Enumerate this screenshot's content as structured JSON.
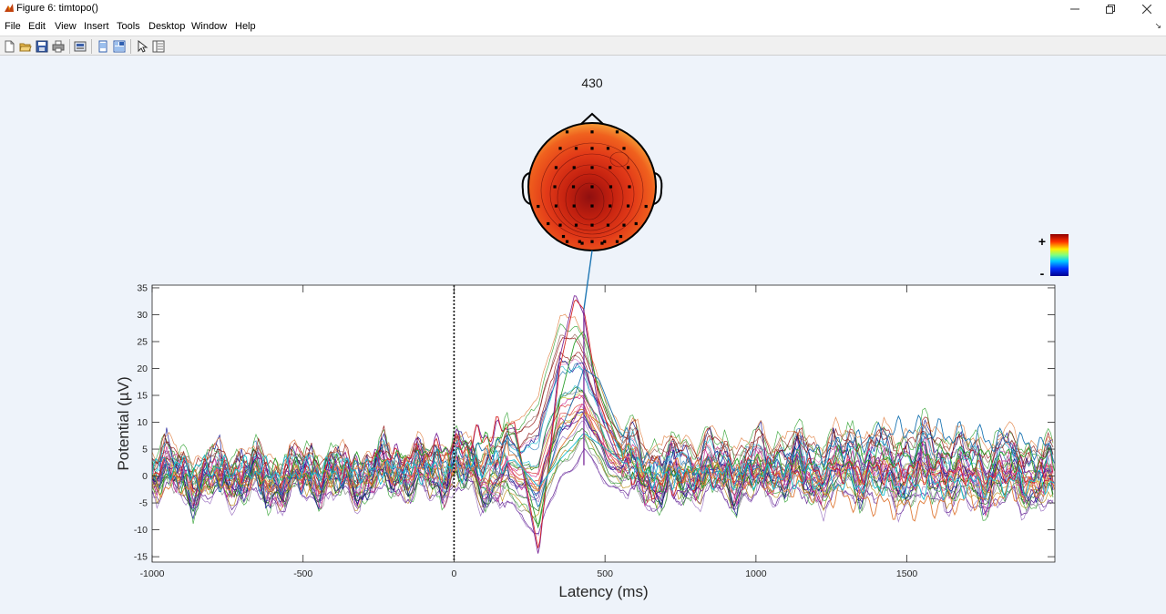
{
  "window": {
    "title": "Figure 6: timtopo()",
    "controls": [
      "minimize",
      "restore",
      "close"
    ]
  },
  "menu": {
    "items": [
      "File",
      "Edit",
      "View",
      "Insert",
      "Tools",
      "Desktop",
      "Window",
      "Help"
    ]
  },
  "toolbar": {
    "icons": [
      "new-figure-icon",
      "open-file-icon",
      "save-icon",
      "print-icon",
      "print-preview-icon",
      "hide-plot-tools-icon",
      "show-plot-tools-icon",
      "edit-plot-pointer-icon",
      "open-property-inspector-icon"
    ]
  },
  "colors": {
    "figure_background": "#eef3fa",
    "axes_background": "#ffffff",
    "connector_line": "#1f77b4",
    "latency_marker": "#7b2a9a",
    "zero_line": "#000000"
  },
  "topoplot": {
    "title": "430",
    "latency_ms": 430,
    "colorbar": {
      "plus_label": "+",
      "minus_label": "-",
      "colormap": "jet"
    }
  },
  "chart_data": {
    "type": "line",
    "title": "",
    "xlabel": "Latency (ms)",
    "ylabel": "Potential (µV)",
    "xlim": [
      -1000,
      1990
    ],
    "ylim": [
      -16,
      35.5
    ],
    "xticks": [
      -1000,
      -500,
      0,
      500,
      1000,
      1500
    ],
    "yticks": [
      -15,
      -10,
      -5,
      0,
      5,
      10,
      15,
      20,
      25,
      30,
      35
    ],
    "grid": false,
    "legend": "none",
    "zero_line_x": 0,
    "marked_latency_x": 430,
    "channel_count": 32,
    "summary_envelope": {
      "x": [
        -1000,
        -800,
        -500,
        -200,
        0,
        80,
        200,
        280,
        350,
        400,
        430,
        480,
        550,
        650,
        1000,
        1500,
        1990
      ],
      "max": [
        6,
        5,
        5,
        5,
        8,
        5,
        12,
        18,
        33,
        34,
        28,
        20,
        10,
        8,
        8,
        10,
        7
      ],
      "min": [
        -4,
        -5,
        -5,
        -4,
        -4,
        -5,
        -8,
        -15,
        -5,
        -2,
        2,
        -2,
        -5,
        -6,
        -5,
        -6,
        -7
      ]
    },
    "series": [
      {
        "values": [
          [
            -1000,
            0.5
          ],
          [
            -500,
            -0.5
          ],
          [
            0,
            6
          ],
          [
            200,
            9
          ],
          [
            280,
            -15
          ],
          [
            350,
            22
          ],
          [
            400,
            34
          ],
          [
            430,
            30
          ],
          [
            480,
            12
          ],
          [
            550,
            2
          ],
          [
            650,
            -3
          ],
          [
            1000,
            0
          ],
          [
            1500,
            2
          ],
          [
            1990,
            1
          ]
        ],
        "color": "#7b2a9a"
      },
      {
        "values": [
          [
            -1000,
            1
          ],
          [
            -500,
            0
          ],
          [
            0,
            5
          ],
          [
            200,
            10
          ],
          [
            280,
            -14
          ],
          [
            350,
            20
          ],
          [
            400,
            33
          ],
          [
            430,
            31
          ],
          [
            480,
            14
          ],
          [
            550,
            3
          ],
          [
            650,
            -2
          ],
          [
            1000,
            1
          ],
          [
            1500,
            1
          ],
          [
            1990,
            0
          ]
        ],
        "color": "#d62728"
      },
      {
        "values": [
          [
            -1000,
            -1
          ],
          [
            -500,
            1
          ],
          [
            0,
            4
          ],
          [
            200,
            8
          ],
          [
            280,
            -10
          ],
          [
            350,
            14
          ],
          [
            400,
            25
          ],
          [
            430,
            27
          ],
          [
            480,
            16
          ],
          [
            550,
            5
          ],
          [
            650,
            -1
          ],
          [
            1000,
            2
          ],
          [
            1500,
            4
          ],
          [
            1990,
            3
          ]
        ],
        "color": "#2ca02c"
      },
      {
        "values": [
          [
            -1000,
            0
          ],
          [
            -500,
            -1
          ],
          [
            0,
            3
          ],
          [
            200,
            6
          ],
          [
            280,
            -6
          ],
          [
            350,
            8
          ],
          [
            400,
            15
          ],
          [
            430,
            20
          ],
          [
            480,
            18
          ],
          [
            550,
            8
          ],
          [
            650,
            1
          ],
          [
            1000,
            1
          ],
          [
            1500,
            9
          ],
          [
            1990,
            5
          ]
        ],
        "color": "#1f77b4"
      },
      {
        "values": [
          [
            -1000,
            -2
          ],
          [
            -500,
            0
          ],
          [
            0,
            2
          ],
          [
            200,
            4
          ],
          [
            280,
            -3
          ],
          [
            350,
            5
          ],
          [
            400,
            9
          ],
          [
            430,
            12
          ],
          [
            480,
            10
          ],
          [
            550,
            6
          ],
          [
            650,
            2
          ],
          [
            1000,
            -1
          ],
          [
            1500,
            -6
          ],
          [
            1990,
            -2
          ]
        ],
        "color": "#e07b39"
      },
      {
        "values": [
          [
            -1000,
            2
          ],
          [
            -500,
            1
          ],
          [
            0,
            1
          ],
          [
            200,
            3
          ],
          [
            280,
            -2
          ],
          [
            350,
            3
          ],
          [
            400,
            6
          ],
          [
            430,
            8
          ],
          [
            480,
            6
          ],
          [
            550,
            3
          ],
          [
            650,
            0
          ],
          [
            1000,
            0
          ],
          [
            1500,
            -2
          ],
          [
            1990,
            -1
          ]
        ],
        "color": "#17becf"
      }
    ]
  }
}
